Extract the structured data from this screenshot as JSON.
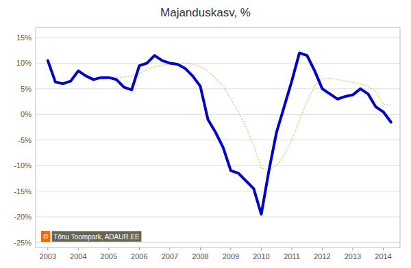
{
  "chart_data": {
    "type": "line",
    "title": "Majanduskasv, %",
    "x": [
      2003,
      2003.25,
      2003.5,
      2003.75,
      2004,
      2004.25,
      2004.5,
      2004.75,
      2005,
      2005.25,
      2005.5,
      2005.75,
      2006,
      2006.25,
      2006.5,
      2006.75,
      2007,
      2007.25,
      2007.5,
      2007.75,
      2008,
      2008.25,
      2008.5,
      2008.75,
      2009,
      2009.25,
      2009.5,
      2009.75,
      2010,
      2010.25,
      2010.5,
      2010.75,
      2011,
      2011.25,
      2011.5,
      2011.75,
      2012,
      2012.25,
      2012.5,
      2012.75,
      2013,
      2013.25,
      2013.5,
      2013.75,
      2014,
      2014.25
    ],
    "series": [
      {
        "color": "#c8c864",
        "line_style": "dotted",
        "values": [
          null,
          null,
          null,
          null,
          null,
          null,
          null,
          6.8,
          7.0,
          7.2,
          7.3,
          7.5,
          8.0,
          8.8,
          9.3,
          9.6,
          9.8,
          9.9,
          10.0,
          9.8,
          9.3,
          8.5,
          7.0,
          5.5,
          3.0,
          0.5,
          -2.5,
          -6.0,
          -10.5,
          -10.8,
          -10.0,
          -8.0,
          -5.0,
          -1.0,
          2.5,
          5.5,
          7.0,
          7.0,
          6.8,
          6.5,
          6.3,
          6.0,
          5.5,
          4.5,
          2.0,
          1.8
        ]
      },
      {
        "color": "#0000cc",
        "line_style": "solid",
        "values": [
          10.5,
          6.3,
          6.0,
          6.5,
          8.5,
          7.5,
          6.8,
          7.2,
          7.2,
          6.8,
          5.3,
          4.8,
          9.5,
          10.0,
          11.5,
          10.5,
          10.0,
          9.8,
          9.0,
          7.5,
          5.5,
          -1.0,
          -3.5,
          -6.5,
          -11.0,
          -11.5,
          -13.0,
          -14.5,
          -19.5,
          -11.0,
          -3.5,
          1.5,
          6.5,
          12.0,
          11.5,
          8.5,
          5.0,
          4.0,
          3.0,
          3.5,
          3.8,
          5.0,
          4.0,
          1.5,
          0.5,
          -1.5
        ]
      }
    ],
    "xlim": [
      2002.6,
      2014.55
    ],
    "xticks": [
      2003,
      2004,
      2005,
      2006,
      2007,
      2008,
      2009,
      2010,
      2011,
      2012,
      2013,
      2014
    ],
    "ylim": [
      -26,
      17
    ],
    "yticks": [
      {
        "value": -25,
        "label": "-25%"
      },
      {
        "value": -20,
        "label": "-20%"
      },
      {
        "value": -15,
        "label": "-15%"
      },
      {
        "value": -10,
        "label": "-10%"
      },
      {
        "value": -5,
        "label": "-5%"
      },
      {
        "value": 0,
        "label": "0%"
      },
      {
        "value": 5,
        "label": "5%"
      },
      {
        "value": 10,
        "label": "10%"
      },
      {
        "value": 15,
        "label": "15%"
      }
    ],
    "grid": true,
    "annotations": [
      "©",
      "Tõnu Toompark, ADAUR.EE"
    ]
  }
}
